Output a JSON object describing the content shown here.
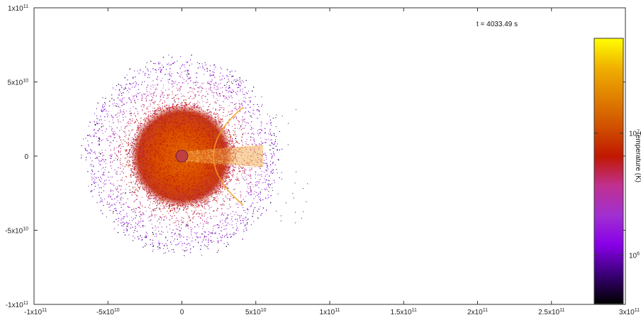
{
  "chart_data": {
    "type": "scatter",
    "title": "",
    "annotation": "t = 4033.49  s",
    "xlabel": "",
    "ylabel": "",
    "xlim": [
      -100000000000.0,
      300000000000.0
    ],
    "ylim": [
      -100000000000.0,
      100000000000.0
    ],
    "grid": false,
    "x_ticks": [
      {
        "value": -100000000000.0,
        "base": "-1x10",
        "exp": "11"
      },
      {
        "value": -50000000000.0,
        "base": "-5x10",
        "exp": "10"
      },
      {
        "value": 0,
        "base": "0",
        "exp": ""
      },
      {
        "value": 50000000000.0,
        "base": "5x10",
        "exp": "10"
      },
      {
        "value": 100000000000.0,
        "base": "1x10",
        "exp": "11"
      },
      {
        "value": 150000000000.0,
        "base": "1.5x10",
        "exp": "11"
      },
      {
        "value": 200000000000.0,
        "base": "2x10",
        "exp": "11"
      },
      {
        "value": 250000000000.0,
        "base": "2.5x10",
        "exp": "11"
      },
      {
        "value": 300000000000.0,
        "base": "3x10",
        "exp": "11"
      }
    ],
    "y_ticks": [
      {
        "value": 100000000000.0,
        "base": "1x10",
        "exp": "11"
      },
      {
        "value": 50000000000.0,
        "base": "5x10",
        "exp": "10"
      },
      {
        "value": 0,
        "base": "0",
        "exp": ""
      },
      {
        "value": -50000000000.0,
        "base": "-5x10",
        "exp": "10"
      },
      {
        "value": -100000000000.0,
        "base": "-1x10",
        "exp": "11"
      }
    ],
    "colorbar": {
      "label": "Temperature (K)",
      "scale": "log",
      "range": [
        400000,
        60000000
      ],
      "ticks": [
        {
          "value": 1000000.0,
          "base": "10",
          "exp": "6"
        },
        {
          "value": 10000000.0,
          "base": "10",
          "exp": "7"
        }
      ],
      "colormap": [
        "#000000",
        "#3a0078",
        "#8800e8",
        "#a030d0",
        "#c03090",
        "#c01800",
        "#d05000",
        "#e08000",
        "#f0b000",
        "#ffff00"
      ]
    },
    "features": {
      "particle_cloud": {
        "center": [
          0,
          0
        ],
        "outer_radius": 68000000000.0,
        "hot_core_radius": 33000000000.0
      },
      "hot_core_temperature_K": 10000000.0,
      "outer_temperature_K": 1000000.0,
      "central_object": {
        "center": [
          0,
          0
        ],
        "radius": 2000000000.0
      },
      "shock_arc": {
        "apex_x": 8000000000.0,
        "opening_to": "+x",
        "extent_y": 22000000000.0
      },
      "outflow_tail": {
        "from_x": 0,
        "to_x": 55000000000.0,
        "half_width": 3000000000.0
      }
    }
  }
}
